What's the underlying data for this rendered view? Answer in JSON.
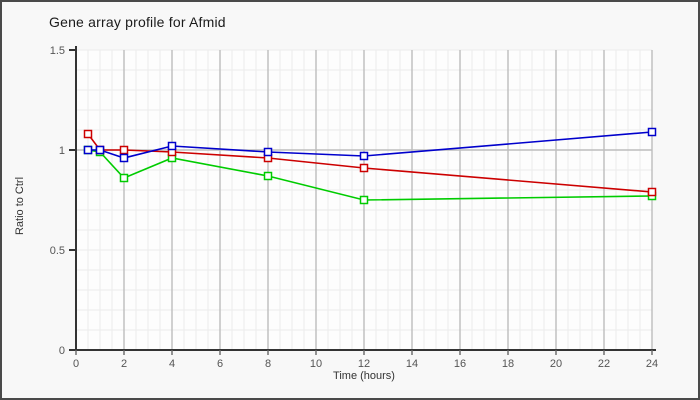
{
  "card": {
    "background": "#f8f8f8",
    "border_color": "#4a4a4a"
  },
  "chart_data": {
    "type": "line",
    "title": "Gene array profile for Afmid",
    "xlabel": "Time (hours)",
    "ylabel": "Ratio to Ctrl",
    "x": [
      0.5,
      1,
      2,
      4,
      8,
      12,
      24
    ],
    "series": [
      {
        "name": "green",
        "color": "#00cc00",
        "values": [
          1.0,
          0.99,
          0.86,
          0.96,
          0.87,
          0.75,
          0.77
        ]
      },
      {
        "name": "red",
        "color": "#cc0000",
        "values": [
          1.08,
          1.0,
          1.0,
          0.99,
          0.96,
          0.91,
          0.79
        ]
      },
      {
        "name": "blue",
        "color": "#0000cc",
        "values": [
          1.0,
          1.0,
          0.96,
          1.02,
          0.99,
          0.97,
          1.09
        ]
      }
    ],
    "xlim": [
      0,
      24
    ],
    "ylim": [
      0,
      1.5
    ],
    "x_tick_values": [
      0,
      2,
      4,
      6,
      8,
      10,
      12,
      14,
      16,
      18,
      20,
      22,
      24
    ],
    "x_tick_labels": [
      "0",
      "2",
      "4",
      "6",
      "8",
      "10",
      "12",
      "14",
      "16",
      "18",
      "20",
      "22",
      "24"
    ],
    "y_tick_values": [
      0,
      0.5,
      1,
      1.5
    ],
    "y_tick_labels": [
      "0",
      "0.5",
      "1",
      "1.5"
    ],
    "grid": {
      "x_minor_step": 0.5,
      "y_minor_step": 0.1,
      "minor_color": "#ebebeb",
      "major_color": "#bdbdbd",
      "ref_line_value": 1
    },
    "plot_background": "#fdfdfd",
    "axis_color": "#333333",
    "tick_label_color": "#555555",
    "marker": "open-square",
    "legend": "none"
  }
}
